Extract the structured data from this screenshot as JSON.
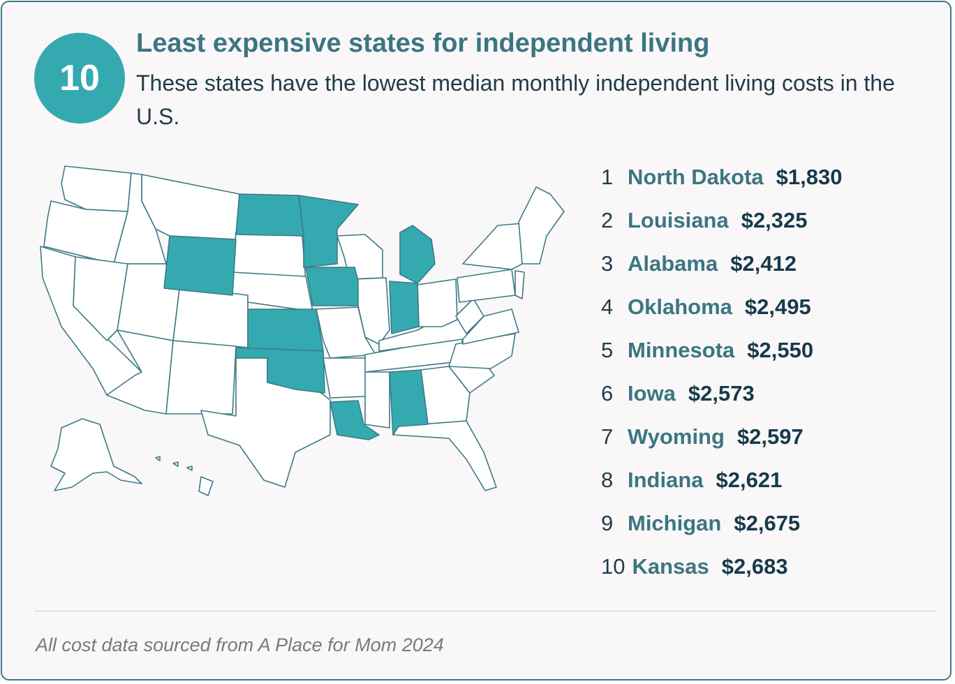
{
  "badge": "10",
  "title": "Least expensive states for independent living",
  "subtitle": "These states have the lowest median monthly independent living costs in the U.S.",
  "rankings": [
    {
      "rank": "1",
      "state": "North Dakota",
      "cost": "$1,830"
    },
    {
      "rank": "2",
      "state": "Louisiana",
      "cost": "$2,325"
    },
    {
      "rank": "3",
      "state": "Alabama",
      "cost": "$2,412"
    },
    {
      "rank": "4",
      "state": "Oklahoma",
      "cost": "$2,495"
    },
    {
      "rank": "5",
      "state": "Minnesota",
      "cost": "$2,550"
    },
    {
      "rank": "6",
      "state": "Iowa",
      "cost": "$2,573"
    },
    {
      "rank": "7",
      "state": "Wyoming",
      "cost": "$2,597"
    },
    {
      "rank": "8",
      "state": "Indiana",
      "cost": "$2,621"
    },
    {
      "rank": "9",
      "state": "Michigan",
      "cost": "$2,675"
    },
    {
      "rank": "10",
      "state": "Kansas",
      "cost": "$2,683"
    }
  ],
  "map": {
    "highlight_color": "#34aab0",
    "base_color": "#ffffff",
    "border_color": "#3d7a86",
    "highlighted_states": [
      "North Dakota",
      "Louisiana",
      "Alabama",
      "Oklahoma",
      "Minnesota",
      "Iowa",
      "Wyoming",
      "Indiana",
      "Michigan",
      "Kansas"
    ]
  },
  "footer": "All cost data sourced from A Place for Mom 2024"
}
